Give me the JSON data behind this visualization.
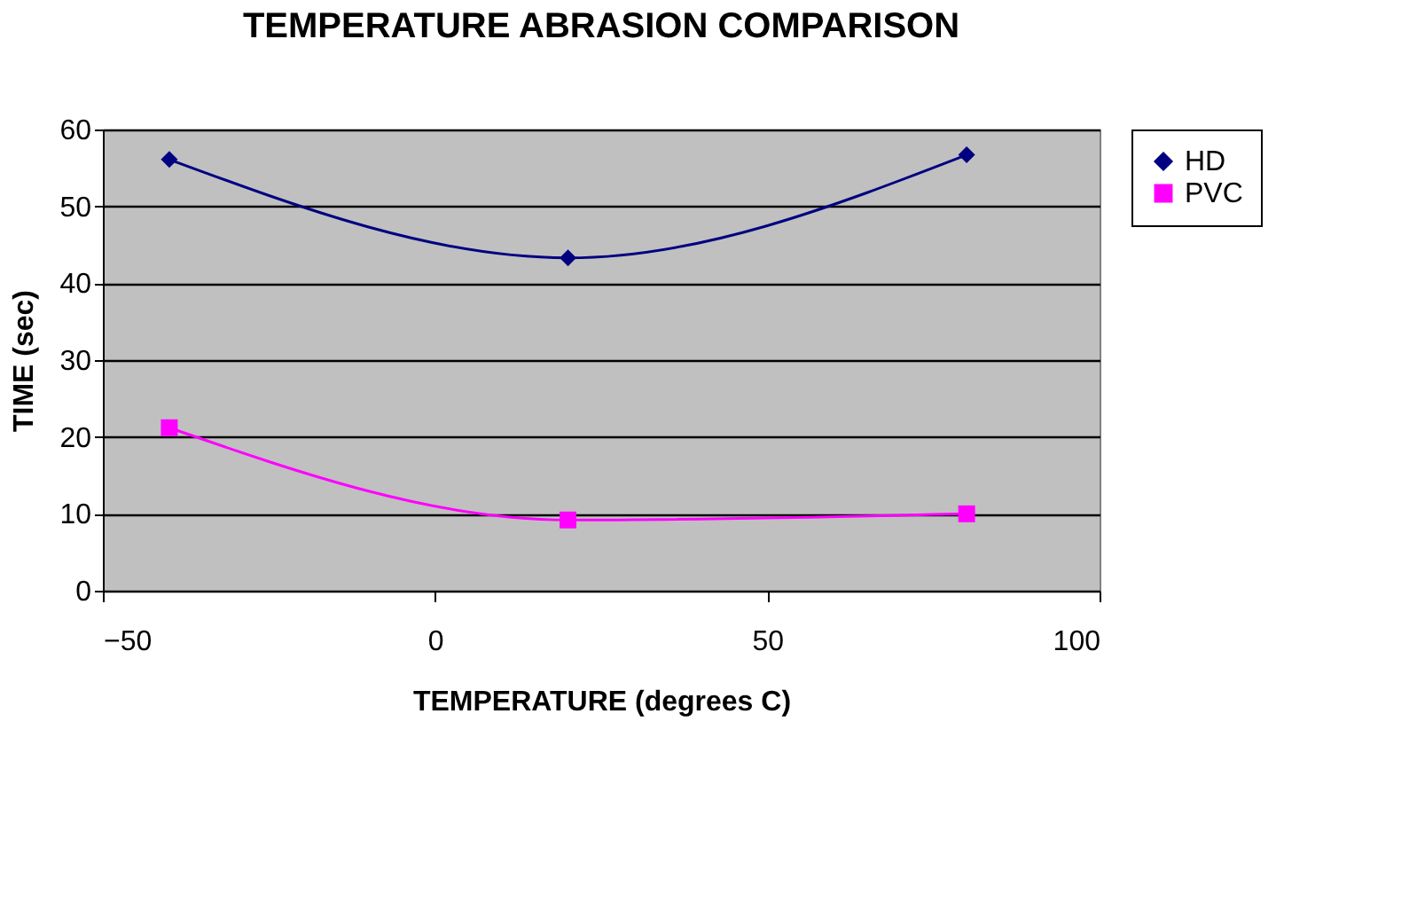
{
  "chart_data": {
    "type": "line",
    "title": "TEMPERATURE ABRASION COMPARISON",
    "xlabel": "TEMPERATURE (degrees C)",
    "ylabel": "TIME (sec)",
    "x": [
      -40,
      20,
      80
    ],
    "series": [
      {
        "name": "HD",
        "color": "#000080",
        "marker": "diamond",
        "values": [
          56.1,
          43.3,
          56.7
        ]
      },
      {
        "name": "PVC",
        "color": "#ff00ff",
        "marker": "square",
        "values": [
          21.2,
          9.2,
          10.0
        ]
      }
    ],
    "xlim": [
      -50,
      100
    ],
    "xticks": [
      -50,
      0,
      50,
      100
    ],
    "ylim": [
      0,
      60
    ],
    "yticks": [
      0,
      10,
      20,
      30,
      40,
      50,
      60
    ],
    "grid": "y",
    "legend": "right",
    "line_style": "solid"
  }
}
